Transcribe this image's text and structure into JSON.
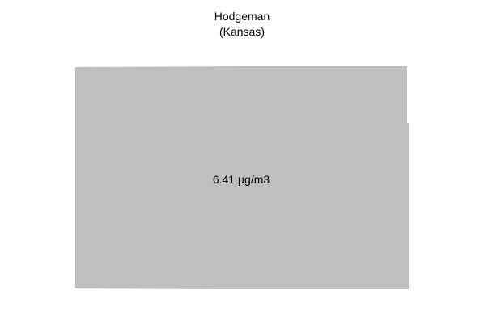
{
  "map": {
    "title": "Hodgeman",
    "subtitle": "(Kansas)",
    "region_fill": "#bfbfbf",
    "background": "#ffffff",
    "value_label": "6.41 µg/m3"
  }
}
